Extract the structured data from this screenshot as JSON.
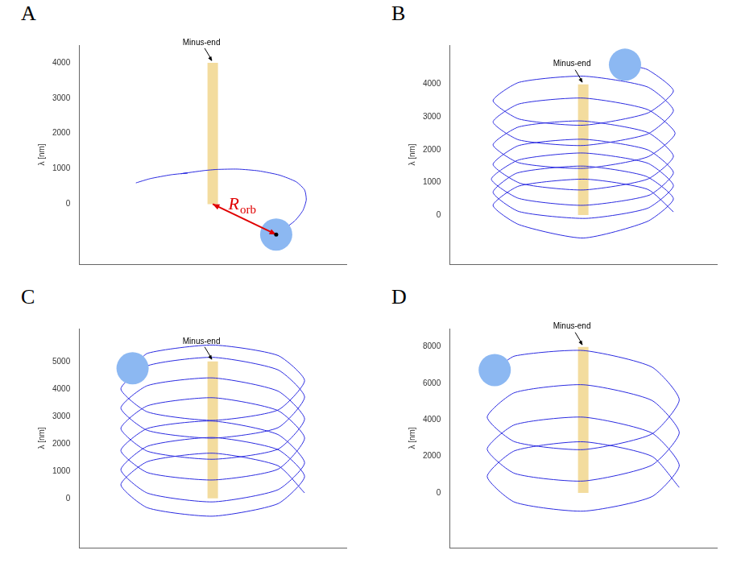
{
  "chart_data": [
    {
      "panel": "A",
      "type": "line",
      "y_label": "λ [nm]",
      "annotation": "Minus-end",
      "xlim": [
        -1.6,
        1.6
      ],
      "ylim": [
        -1700,
        4500
      ],
      "yticks": [
        0,
        1000,
        2000,
        3000,
        4000
      ],
      "grid": false,
      "tick_labels": "y",
      "microtubule": {
        "color": "#f3dc9e",
        "x": 0,
        "lambda": [
          0,
          4000
        ]
      },
      "cargo": {
        "color": "#8cb8f2",
        "x": 0.76,
        "y": -860
      },
      "radius_arrow": {
        "label": "R",
        "subscript": "orb",
        "color": "#e00000"
      },
      "trajectory": {
        "color": "#2a2ae0",
        "points": [
          [
            -0.92,
            600
          ],
          [
            -0.75,
            720
          ],
          [
            -0.5,
            830
          ],
          [
            -0.3,
            880
          ],
          [
            -0.38,
            860
          ],
          [
            -0.1,
            950
          ],
          [
            0.05,
            980
          ],
          [
            0.3,
            990
          ],
          [
            0.55,
            940
          ],
          [
            0.8,
            820
          ],
          [
            1.0,
            630
          ],
          [
            1.1,
            400
          ],
          [
            1.12,
            120
          ],
          [
            1.08,
            -180
          ],
          [
            0.98,
            -480
          ],
          [
            0.76,
            -860
          ]
        ]
      }
    },
    {
      "panel": "B",
      "type": "line",
      "y_label": "λ [nm]",
      "annotation": "Minus-end",
      "xlim": [
        -1.6,
        1.6
      ],
      "ylim": [
        -1500,
        5200
      ],
      "yticks": [
        0,
        1000,
        2000,
        3000,
        4000
      ],
      "grid": false,
      "tick_labels": "y",
      "microtubule": {
        "color": "#f3dc9e",
        "x": 0,
        "lambda": [
          0,
          4000
        ]
      },
      "cargo": {
        "color": "#8cb8f2",
        "x": 0.5,
        "y": 4600
      },
      "trajectory": {
        "color": "#2a2ae0",
        "points": [
          [
            1.08,
            100
          ],
          [
            0.77,
            790
          ],
          [
            0.02,
            1100
          ],
          [
            -0.77,
            890
          ],
          [
            -1.08,
            300
          ],
          [
            -0.77,
            -290
          ],
          [
            0,
            -700
          ],
          [
            0.77,
            -190
          ],
          [
            1.08,
            500
          ],
          [
            0.75,
            1190
          ],
          [
            0,
            1500
          ],
          [
            -0.79,
            1290
          ],
          [
            -1.08,
            700
          ],
          [
            -0.77,
            110
          ],
          [
            0.03,
            -100
          ],
          [
            0.77,
            210
          ],
          [
            1.08,
            900
          ],
          [
            0.77,
            1590
          ],
          [
            0,
            1900
          ],
          [
            -0.77,
            1690
          ],
          [
            -1.1,
            1100
          ],
          [
            -0.77,
            510
          ],
          [
            0,
            300
          ],
          [
            0.79,
            610
          ],
          [
            1.08,
            1300
          ],
          [
            0.77,
            2000
          ],
          [
            0,
            2320
          ],
          [
            -0.77,
            2130
          ],
          [
            -1.08,
            1550
          ],
          [
            -0.75,
            970
          ],
          [
            0,
            770
          ],
          [
            0.77,
            1100
          ],
          [
            1.08,
            1800
          ],
          [
            0.77,
            2530
          ],
          [
            -0.02,
            2880
          ],
          [
            -0.77,
            2700
          ],
          [
            -1.08,
            2150
          ],
          [
            -0.77,
            1600
          ],
          [
            0,
            1430
          ],
          [
            0.77,
            1780
          ],
          [
            1.1,
            2500
          ],
          [
            0.77,
            3230
          ],
          [
            0,
            3580
          ],
          [
            -0.77,
            3400
          ],
          [
            -1.08,
            2850
          ],
          [
            -0.77,
            2300
          ],
          [
            0,
            2130
          ],
          [
            0.77,
            2480
          ],
          [
            1.08,
            3200
          ],
          [
            0.77,
            3920
          ],
          [
            0,
            4250
          ],
          [
            -0.77,
            4060
          ],
          [
            -1.08,
            3500
          ],
          [
            -0.77,
            2940
          ],
          [
            0,
            2750
          ],
          [
            0.77,
            3120
          ],
          [
            1.08,
            3800
          ],
          [
            0.77,
            4450
          ],
          [
            0.5,
            4600
          ]
        ]
      }
    },
    {
      "panel": "C",
      "type": "line",
      "y_label": "λ [nm]",
      "annotation": "Minus-end",
      "xlim": [
        -1.6,
        1.6
      ],
      "ylim": [
        -1800,
        6200
      ],
      "yticks": [
        0,
        1000,
        2000,
        3000,
        4000,
        5000
      ],
      "grid": false,
      "tick_labels": "y",
      "microtubule": {
        "color": "#f3dc9e",
        "x": 0,
        "lambda": [
          0,
          5000
        ]
      },
      "cargo": {
        "color": "#8cb8f2",
        "x": -0.96,
        "y": 4750
      },
      "trajectory": {
        "color": "#2a2ae0",
        "points": [
          [
            1.1,
            200
          ],
          [
            0.78,
            1195
          ],
          [
            0,
            1650
          ],
          [
            -0.78,
            1345
          ],
          [
            -1.1,
            500
          ],
          [
            -0.78,
            -345
          ],
          [
            0,
            -650
          ],
          [
            0.78,
            -195
          ],
          [
            1.1,
            800
          ],
          [
            0.78,
            1782
          ],
          [
            0,
            2224
          ],
          [
            -0.78,
            1906
          ],
          [
            -1.1,
            1048
          ],
          [
            -0.78,
            190
          ],
          [
            0,
            -128
          ],
          [
            0.78,
            314
          ],
          [
            1.1,
            1300
          ],
          [
            0.78,
            2332
          ],
          [
            0,
            2824
          ],
          [
            -0.78,
            2556
          ],
          [
            -1.1,
            1748
          ],
          [
            -0.78,
            940
          ],
          [
            0,
            672
          ],
          [
            0.78,
            1064
          ],
          [
            1.1,
            2200
          ],
          [
            0.78,
            3208
          ],
          [
            0,
            3676
          ],
          [
            -0.78,
            3384
          ],
          [
            -1.1,
            2552
          ],
          [
            -0.78,
            1720
          ],
          [
            0,
            1428
          ],
          [
            0.78,
            1796
          ],
          [
            1.1,
            2900
          ],
          [
            0.78,
            3920
          ],
          [
            0,
            4400
          ],
          [
            -0.78,
            4120
          ],
          [
            -1.1,
            3300
          ],
          [
            -0.78,
            2480
          ],
          [
            0,
            2200
          ],
          [
            0.78,
            2580
          ],
          [
            1.1,
            3700
          ],
          [
            0.78,
            4695
          ],
          [
            0,
            5150
          ],
          [
            -0.78,
            4845
          ],
          [
            -1.1,
            4000
          ],
          [
            -0.78,
            3155
          ],
          [
            0,
            2850
          ],
          [
            0.78,
            3225
          ],
          [
            1.1,
            4300
          ],
          [
            0.78,
            5220
          ],
          [
            0,
            5600
          ],
          [
            -0.78,
            5300
          ],
          [
            -0.96,
            4750
          ]
        ]
      }
    },
    {
      "panel": "D",
      "type": "line",
      "y_label": "λ [nm]",
      "annotation": "Minus-end",
      "xlim": [
        -1.6,
        1.6
      ],
      "ylim": [
        -3000,
        9000
      ],
      "yticks": [
        0,
        2000,
        4000,
        6000,
        8000
      ],
      "grid": false,
      "tick_labels": "y",
      "microtubule": {
        "color": "#f3dc9e",
        "x": 0,
        "lambda": [
          0,
          8000
        ]
      },
      "cargo": {
        "color": "#8cb8f2",
        "x": -1.06,
        "y": 6730
      },
      "trajectory": {
        "color": "#2a2ae0",
        "points": [
          [
            1.15,
            300
          ],
          [
            0.82,
            2010
          ],
          [
            0,
            2800
          ],
          [
            -0.82,
            2310
          ],
          [
            -1.15,
            900
          ],
          [
            -0.82,
            -510
          ],
          [
            0,
            -1000
          ],
          [
            0.82,
            -210
          ],
          [
            1.15,
            1500
          ],
          [
            0.82,
            3285
          ],
          [
            0,
            4150
          ],
          [
            -0.82,
            3735
          ],
          [
            -1.15,
            2400
          ],
          [
            -0.82,
            1065
          ],
          [
            0,
            650
          ],
          [
            0.82,
            1515
          ],
          [
            1.15,
            3300
          ],
          [
            0.82,
            5072
          ],
          [
            0,
            5924
          ],
          [
            -0.82,
            5496
          ],
          [
            -1.15,
            4148
          ],
          [
            -0.82,
            2800
          ],
          [
            0,
            2372
          ],
          [
            0.82,
            3224
          ],
          [
            1.15,
            5100
          ],
          [
            0.82,
            6900
          ],
          [
            0,
            7800
          ],
          [
            -0.82,
            7500
          ],
          [
            -1.06,
            6730
          ]
        ]
      }
    }
  ]
}
